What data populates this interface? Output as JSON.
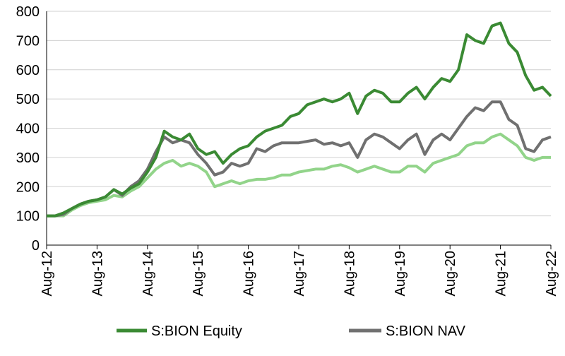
{
  "chart_data": {
    "type": "line",
    "categories": [
      "Aug-12",
      null,
      null,
      null,
      null,
      null,
      "Aug-13",
      null,
      null,
      null,
      null,
      null,
      "Aug-14",
      null,
      null,
      null,
      null,
      null,
      "Aug-15",
      null,
      null,
      null,
      null,
      null,
      "Aug-16",
      null,
      null,
      null,
      null,
      null,
      "Aug-17",
      null,
      null,
      null,
      null,
      null,
      "Aug-18",
      null,
      null,
      null,
      null,
      null,
      "Aug-19",
      null,
      null,
      null,
      null,
      null,
      "Aug-20",
      null,
      null,
      null,
      null,
      null,
      "Aug-21",
      null,
      null,
      null,
      null,
      null,
      "Aug-22"
    ],
    "series": [
      {
        "color": "#92d48a",
        "values": [
          100,
          100,
          100,
          120,
          135,
          145,
          150,
          155,
          170,
          165,
          185,
          200,
          230,
          260,
          280,
          290,
          270,
          280,
          270,
          250,
          200,
          210,
          220,
          210,
          220,
          225,
          225,
          230,
          240,
          240,
          250,
          255,
          260,
          260,
          270,
          275,
          265,
          250,
          260,
          270,
          260,
          250,
          250,
          270,
          270,
          250,
          280,
          290,
          300,
          310,
          340,
          350,
          350,
          370,
          380,
          360,
          340,
          300,
          290,
          300,
          300
        ]
      },
      {
        "name": "S:BION NAV",
        "color": "#707070",
        "values": [
          100,
          100,
          105,
          125,
          140,
          150,
          155,
          165,
          190,
          170,
          200,
          220,
          260,
          320,
          370,
          350,
          360,
          350,
          310,
          280,
          240,
          250,
          280,
          270,
          280,
          330,
          320,
          340,
          350,
          350,
          350,
          355,
          360,
          345,
          350,
          340,
          350,
          300,
          360,
          380,
          370,
          350,
          330,
          360,
          380,
          310,
          360,
          380,
          360,
          400,
          440,
          470,
          460,
          490,
          490,
          430,
          410,
          330,
          320,
          360,
          370
        ]
      },
      {
        "name": "S:BION Equity",
        "color": "#3a8a33",
        "values": [
          100,
          100,
          110,
          125,
          140,
          150,
          155,
          165,
          190,
          175,
          195,
          210,
          250,
          300,
          390,
          370,
          360,
          380,
          330,
          310,
          320,
          280,
          310,
          330,
          340,
          370,
          390,
          400,
          410,
          440,
          450,
          480,
          490,
          500,
          490,
          500,
          520,
          450,
          510,
          530,
          520,
          490,
          490,
          520,
          540,
          500,
          540,
          570,
          560,
          600,
          720,
          700,
          690,
          750,
          760,
          690,
          660,
          580,
          530,
          540,
          510
        ]
      }
    ],
    "ylim": [
      0,
      800
    ],
    "yticks": [
      0,
      100,
      200,
      300,
      400,
      500,
      600,
      700,
      800
    ],
    "grid": true
  }
}
